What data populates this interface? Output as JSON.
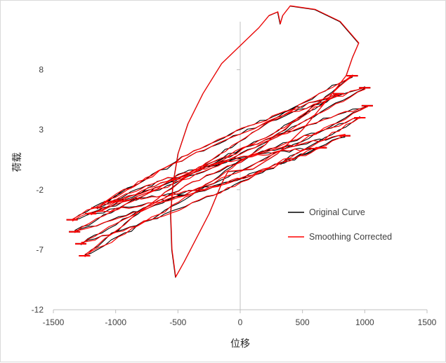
{
  "chart_data": {
    "type": "line",
    "title": "",
    "xlabel": "位移",
    "ylabel": "荷载",
    "xlim": [
      -1500,
      1500
    ],
    "ylim": [
      -12,
      12
    ],
    "xticks": [
      -1500,
      -1000,
      -500,
      0,
      500,
      1000,
      1500
    ],
    "yticks": [
      -12,
      -7,
      -2,
      3,
      8
    ],
    "grid": false,
    "legend_position": "right-middle",
    "colors": {
      "original": "#000000",
      "smoothed": "#ff0000"
    },
    "series": [
      {
        "name": "Original Curve",
        "color": "#000000",
        "loops": [
          {
            "max": [
              1020,
              5.0
            ],
            "min": [
              -1330,
              -5.5
            ]
          },
          {
            "max": [
              960,
              4.0
            ],
            "min": [
              -1280,
              -6.5
            ]
          },
          {
            "max": [
              1000,
              6.5
            ],
            "min": [
              -1350,
              -4.5
            ]
          },
          {
            "max": [
              900,
              7.5
            ],
            "min": [
              -1250,
              -7.5
            ]
          },
          {
            "max": [
              840,
              2.5
            ],
            "min": [
              -1200,
              -4.0
            ]
          },
          {
            "max": [
              790,
              6.0
            ],
            "min": [
              -1150,
              -3.5
            ]
          },
          {
            "max": [
              650,
              1.5
            ],
            "min": [
              -1050,
              -3.0
            ]
          }
        ]
      },
      {
        "name": "Smoothing Corrected",
        "color": "#ff0000",
        "loops": [
          {
            "max": [
              1020,
              5.0
            ],
            "min": [
              -1330,
              -5.5
            ]
          },
          {
            "max": [
              960,
              4.0
            ],
            "min": [
              -1280,
              -6.5
            ]
          },
          {
            "max": [
              1000,
              6.5
            ],
            "min": [
              -1350,
              -4.5
            ]
          },
          {
            "max": [
              900,
              7.5
            ],
            "min": [
              -1250,
              -7.5
            ]
          },
          {
            "max": [
              840,
              2.5
            ],
            "min": [
              -1200,
              -4.0
            ]
          },
          {
            "max": [
              790,
              6.0
            ],
            "min": [
              -1150,
              -3.5
            ]
          },
          {
            "max": [
              650,
              1.5
            ],
            "min": [
              -1050,
              -3.0
            ]
          }
        ]
      }
    ],
    "large_loop": [
      [
        -100,
        -0.5
      ],
      [
        -150,
        -1.5
      ],
      [
        -250,
        -4.0
      ],
      [
        -350,
        -6.0
      ],
      [
        -450,
        -8.0
      ],
      [
        -520,
        -9.3
      ],
      [
        -550,
        -7.0
      ],
      [
        -560,
        -4.0
      ],
      [
        -540,
        -1.5
      ],
      [
        -500,
        1.0
      ],
      [
        -420,
        3.5
      ],
      [
        -300,
        6.0
      ],
      [
        -150,
        8.5
      ],
      [
        0,
        10.0
      ],
      [
        150,
        11.5
      ],
      [
        230,
        12.5
      ],
      [
        300,
        12.8
      ],
      [
        320,
        11.8
      ],
      [
        340,
        12.5
      ],
      [
        400,
        13.3
      ],
      [
        600,
        13.0
      ],
      [
        800,
        12.0
      ],
      [
        900,
        10.8
      ],
      [
        950,
        10.2
      ],
      [
        900,
        9.0
      ],
      [
        850,
        7.5
      ],
      [
        700,
        5.5
      ],
      [
        500,
        3.0
      ],
      [
        300,
        1.0
      ],
      [
        100,
        -0.3
      ],
      [
        -100,
        -0.5
      ]
    ]
  }
}
